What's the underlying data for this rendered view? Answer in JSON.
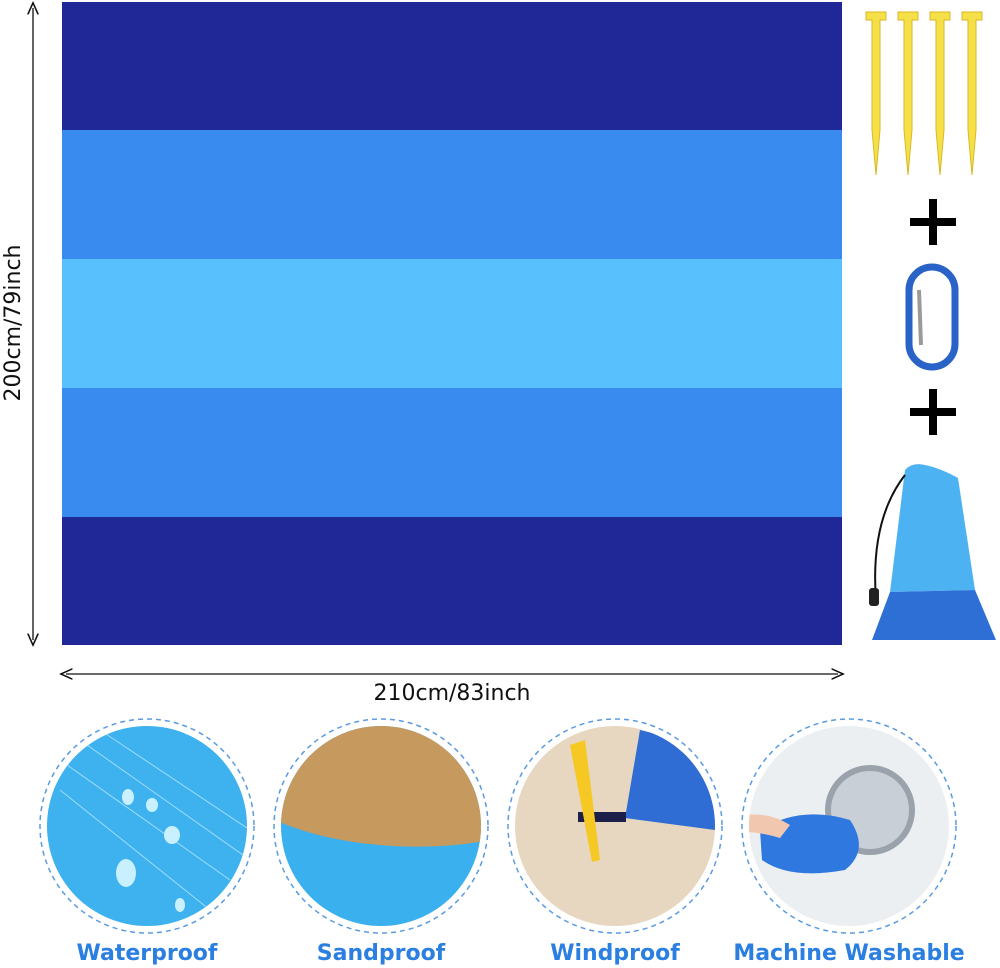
{
  "dimensions": {
    "height": "200cm/79inch",
    "width": "210cm/83inch"
  },
  "features": [
    "Waterproof",
    "Sandproof",
    "Windproof",
    "Machine Washable"
  ]
}
